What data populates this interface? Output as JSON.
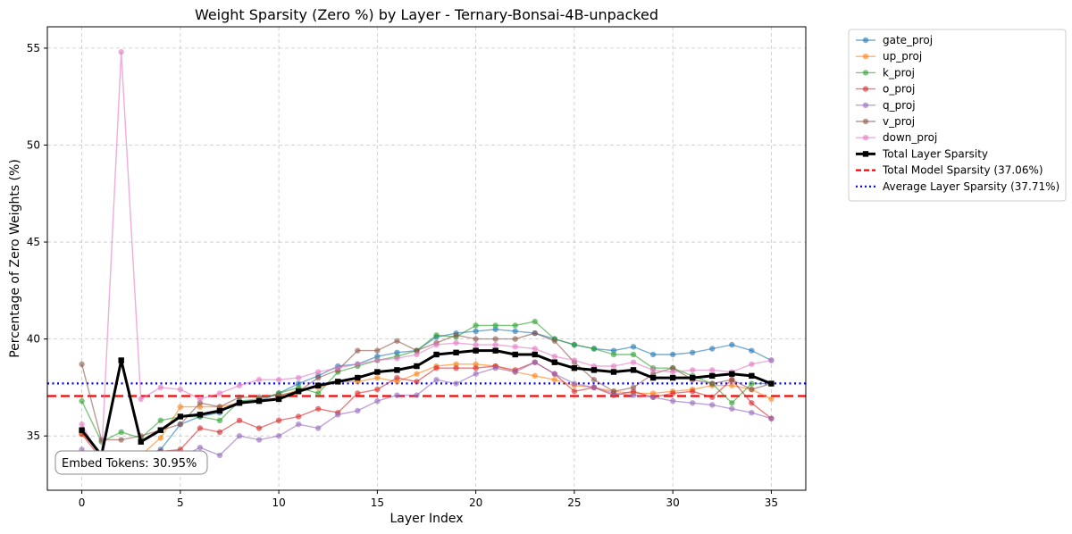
{
  "chart_data": {
    "type": "line",
    "title": "Weight Sparsity (Zero %) by Layer - Ternary-Bonsai-4B-unpacked",
    "xlabel": "Layer Index",
    "ylabel": "Percentage of Zero Weights (%)",
    "xlim": [
      -1.75,
      36.75
    ],
    "ylim": [
      32.2,
      56.1
    ],
    "xticks": [
      0,
      5,
      10,
      15,
      20,
      25,
      30,
      35
    ],
    "yticks": [
      35,
      40,
      45,
      50,
      55
    ],
    "grid": true,
    "legend_position": "outside-top-right",
    "x": [
      0,
      1,
      2,
      3,
      4,
      5,
      6,
      7,
      8,
      9,
      10,
      11,
      12,
      13,
      14,
      15,
      16,
      17,
      18,
      19,
      20,
      21,
      22,
      23,
      24,
      25,
      26,
      27,
      28,
      29,
      30,
      31,
      32,
      33,
      34,
      35
    ],
    "series": [
      {
        "name": "gate_proj",
        "color": "#1f77b4",
        "marker": "circle",
        "values": [
          35.3,
          33.9,
          34.0,
          33.9,
          34.3,
          35.6,
          36.0,
          36.2,
          36.8,
          36.8,
          37.2,
          37.7,
          38.1,
          38.6,
          38.7,
          39.1,
          39.3,
          39.4,
          40.1,
          40.3,
          40.4,
          40.5,
          40.4,
          40.3,
          40.0,
          39.7,
          39.5,
          39.4,
          39.6,
          39.2,
          39.2,
          39.3,
          39.5,
          39.7,
          39.4,
          38.9
        ]
      },
      {
        "name": "up_proj",
        "color": "#ff7f0e",
        "marker": "circle",
        "values": [
          35.1,
          34.1,
          34.0,
          34.0,
          34.9,
          36.5,
          36.5,
          36.5,
          36.7,
          36.8,
          37.0,
          37.4,
          37.5,
          37.8,
          37.8,
          38.0,
          37.8,
          38.2,
          38.6,
          38.7,
          38.7,
          38.6,
          38.3,
          38.1,
          37.9,
          37.6,
          37.5,
          37.3,
          37.2,
          37.2,
          37.3,
          37.4,
          37.6,
          37.6,
          37.4,
          36.9
        ]
      },
      {
        "name": "k_proj",
        "color": "#2ca02c",
        "marker": "circle",
        "values": [
          36.8,
          34.7,
          35.2,
          34.9,
          35.8,
          36.0,
          36.0,
          35.8,
          36.8,
          36.9,
          37.2,
          37.5,
          37.2,
          38.3,
          38.6,
          38.9,
          39.1,
          39.4,
          40.2,
          40.1,
          40.7,
          40.7,
          40.7,
          40.9,
          40.0,
          39.7,
          39.5,
          39.2,
          39.2,
          38.5,
          38.5,
          38.1,
          37.7,
          36.7,
          37.7,
          37.7
        ]
      },
      {
        "name": "o_proj",
        "color": "#d62728",
        "marker": "circle",
        "values": [
          35.1,
          33.8,
          33.9,
          34.0,
          34.2,
          34.3,
          35.4,
          35.2,
          35.8,
          35.4,
          35.8,
          36.0,
          36.4,
          36.2,
          37.2,
          37.4,
          38.0,
          37.8,
          38.5,
          38.5,
          38.5,
          38.6,
          38.4,
          38.8,
          38.2,
          37.3,
          37.5,
          37.1,
          37.3,
          37.0,
          37.2,
          37.3,
          37.0,
          37.9,
          36.7,
          35.9
        ]
      },
      {
        "name": "q_proj",
        "color": "#9467bd",
        "marker": "circle",
        "values": [
          34.3,
          33.5,
          33.7,
          33.8,
          34.0,
          33.9,
          34.4,
          34.0,
          35.0,
          34.8,
          35.0,
          35.6,
          35.4,
          36.1,
          36.3,
          36.8,
          37.1,
          37.1,
          37.9,
          37.7,
          38.2,
          38.5,
          38.3,
          38.8,
          38.2,
          37.7,
          37.5,
          37.2,
          37.1,
          37.0,
          36.8,
          36.7,
          36.6,
          36.4,
          36.2,
          35.9
        ]
      },
      {
        "name": "v_proj",
        "color": "#8c564b",
        "marker": "circle",
        "values": [
          38.7,
          34.8,
          34.8,
          35.0,
          35.3,
          35.6,
          36.7,
          36.5,
          37.0,
          37.0,
          37.1,
          37.3,
          38.0,
          38.4,
          39.4,
          39.4,
          39.9,
          39.4,
          39.8,
          40.2,
          40.0,
          40.0,
          40.0,
          40.3,
          39.9,
          38.8,
          37.9,
          37.3,
          37.5,
          38.2,
          38.5,
          37.9,
          37.7,
          37.9,
          37.4,
          37.7
        ]
      },
      {
        "name": "down_proj",
        "color": "#e377c2",
        "marker": "circle",
        "values": [
          35.6,
          33.8,
          54.8,
          36.9,
          37.5,
          37.4,
          36.9,
          37.2,
          37.6,
          37.9,
          37.9,
          38.0,
          38.3,
          38.5,
          38.7,
          38.9,
          39.0,
          39.2,
          39.7,
          39.8,
          39.7,
          39.7,
          39.6,
          39.5,
          39.1,
          38.9,
          38.6,
          38.6,
          38.8,
          38.4,
          38.3,
          38.4,
          38.4,
          38.3,
          38.7,
          38.9
        ]
      },
      {
        "name": "Total Layer Sparsity",
        "color": "#000000",
        "marker": "square",
        "values": [
          35.3,
          34.0,
          38.9,
          34.7,
          35.3,
          36.0,
          36.1,
          36.3,
          36.7,
          36.8,
          36.9,
          37.3,
          37.6,
          37.8,
          38.0,
          38.3,
          38.4,
          38.6,
          39.2,
          39.3,
          39.4,
          39.4,
          39.2,
          39.2,
          38.8,
          38.5,
          38.4,
          38.3,
          38.4,
          38.0,
          38.0,
          38.0,
          38.1,
          38.2,
          38.1,
          37.7
        ]
      }
    ],
    "reference_lines": [
      {
        "name": "Total Model Sparsity (37.06%)",
        "value": 37.06,
        "color": "#ff0000",
        "style": "dashed"
      },
      {
        "name": "Average Layer Sparsity (37.71%)",
        "value": 37.71,
        "color": "#0000ff",
        "style": "dotted"
      }
    ],
    "annotation": "Embed Tokens: 30.95%"
  }
}
